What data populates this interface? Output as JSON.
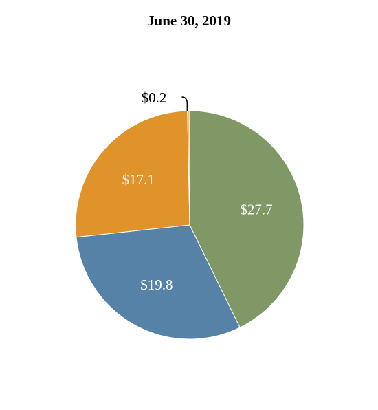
{
  "chart_data": {
    "type": "pie",
    "title": "June 30, 2019",
    "slices": [
      {
        "label": "$27.7",
        "value": 27.7,
        "color": "#7f9866"
      },
      {
        "label": "$19.8",
        "value": 19.8,
        "color": "#5782a8"
      },
      {
        "label": "$17.1",
        "value": 17.1,
        "color": "#e0922b"
      },
      {
        "label": "$0.2",
        "value": 0.2,
        "color": "#f2c27a"
      }
    ],
    "start_angle": "12 o'clock",
    "direction": "clockwise",
    "legend": "none"
  }
}
